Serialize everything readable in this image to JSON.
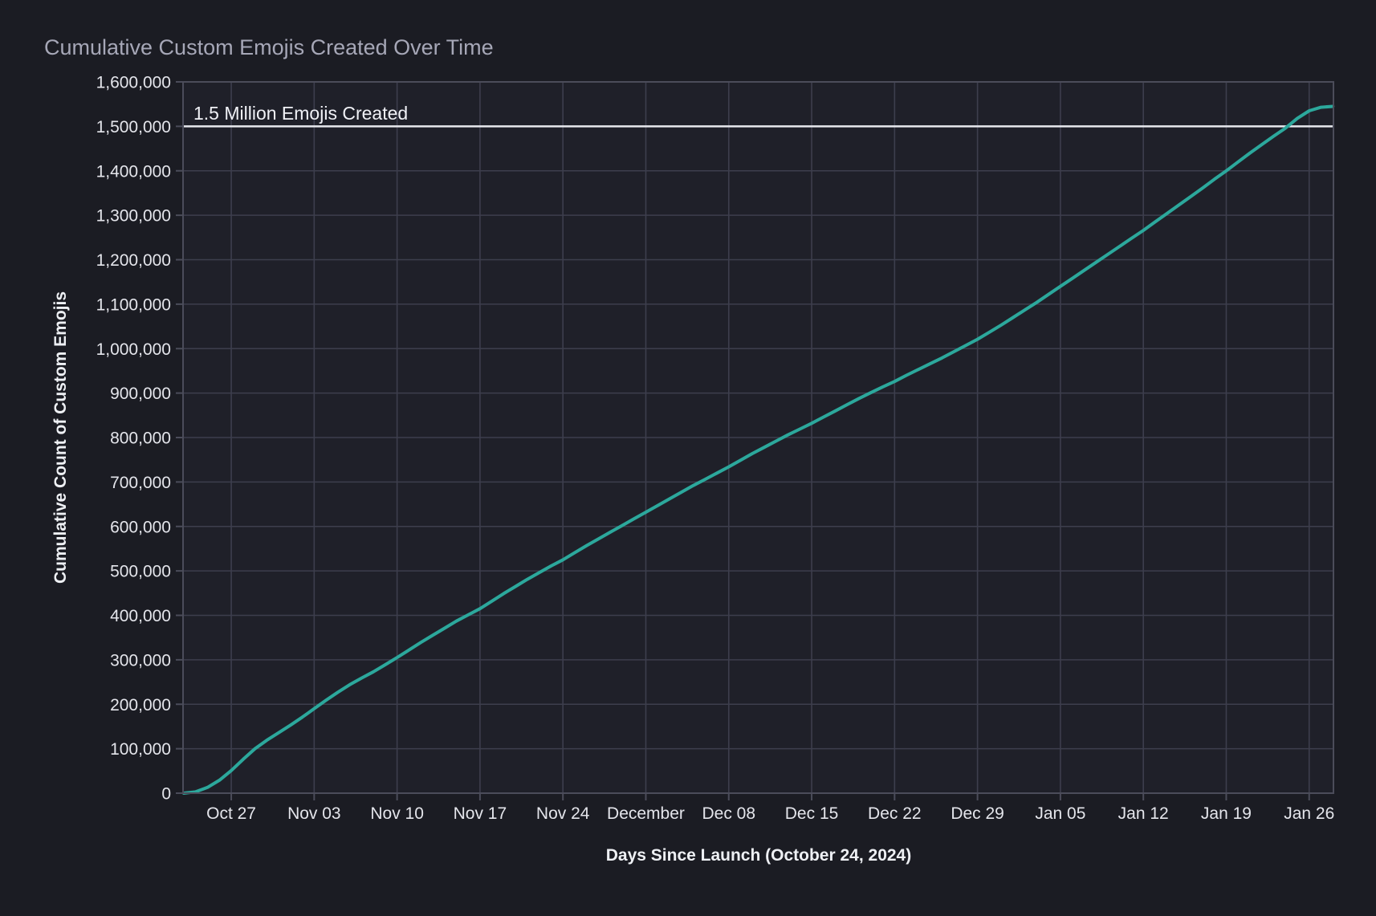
{
  "page": {
    "background": "#1b1c23"
  },
  "chart_data": {
    "type": "line",
    "title": "Cumulative Custom Emojis Created Over Time",
    "xlabel": "Days Since Launch (October 24, 2024)",
    "ylabel": "Cumulative Count of Custom Emojis",
    "series": [
      {
        "name": "cumulative-custom-emojis",
        "color": "#2ca89c",
        "start_date": "2024-10-23",
        "end_date": "2025-01-28",
        "values": [
          0,
          3000,
          13000,
          29000,
          51000,
          76000,
          100000,
          119000,
          136000,
          153000,
          171000,
          190000,
          209000,
          227000,
          244000,
          259000,
          273000,
          289000,
          305000,
          322000,
          339000,
          355000,
          371000,
          387000,
          401000,
          415000,
          432000,
          449000,
          465000,
          481000,
          496000,
          511000,
          525000,
          541000,
          557000,
          572000,
          587000,
          602000,
          617000,
          632000,
          647000,
          662000,
          677000,
          692000,
          706000,
          720000,
          734000,
          749000,
          764000,
          778000,
          792000,
          806000,
          819000,
          832000,
          846000,
          860000,
          874000,
          888000,
          901000,
          914000,
          926000,
          940000,
          953000,
          966000,
          979000,
          993000,
          1007000,
          1021000,
          1037000,
          1053000,
          1070000,
          1087000,
          1104000,
          1122000,
          1140000,
          1158000,
          1176000,
          1194000,
          1212000,
          1230000,
          1248000,
          1266000,
          1285000,
          1304000,
          1323000,
          1342000,
          1361000,
          1381000,
          1400000,
          1420000,
          1440000,
          1459000,
          1478000,
          1496000,
          1518000,
          1535000,
          1543000,
          1545000
        ]
      }
    ],
    "x_ticks": {
      "labels": [
        "Oct 27",
        "Nov 03",
        "Nov 10",
        "Nov 17",
        "Nov 24",
        "December",
        "Dec 08",
        "Dec 15",
        "Dec 22",
        "Dec 29",
        "Jan 05",
        "Jan 12",
        "Jan 19",
        "Jan 26"
      ],
      "day_indices": [
        4,
        11,
        18,
        25,
        32,
        39,
        46,
        53,
        60,
        67,
        74,
        81,
        88,
        95
      ]
    },
    "y_ticks": {
      "labels": [
        "0",
        "100,000",
        "200,000",
        "300,000",
        "400,000",
        "500,000",
        "600,000",
        "700,000",
        "800,000",
        "900,000",
        "1,000,000",
        "1,100,000",
        "1,200,000",
        "1,300,000",
        "1,400,000",
        "1,500,000",
        "1,600,000"
      ],
      "values": [
        0,
        100000,
        200000,
        300000,
        400000,
        500000,
        600000,
        700000,
        800000,
        900000,
        1000000,
        1100000,
        1200000,
        1300000,
        1400000,
        1500000,
        1600000
      ]
    },
    "xlim_days": [
      -0.07,
      97.05
    ],
    "ylim": [
      0,
      1600000
    ],
    "grid": true,
    "legend": "none",
    "annotation": {
      "label": "1.5 Million Emojis Created",
      "value": 1500000,
      "line_color": "#e8e9ee"
    },
    "colors": {
      "accent": "#2ca89c",
      "grid": "#3d3e4d",
      "spine": "#4b4c5a",
      "plot_background": "#1f2029",
      "figure_background": "#1b1c23",
      "title": "#a6a7b7",
      "tick_label": "#e4e5eb",
      "axis_title": "#eef0f4",
      "annotation_text": "#f0f1f6"
    }
  }
}
